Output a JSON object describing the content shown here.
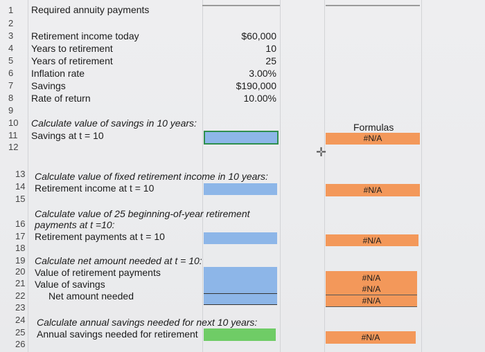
{
  "title": "Required annuity payments",
  "row_numbers": [
    "1",
    "2",
    "3",
    "4",
    "5",
    "6",
    "7",
    "8",
    "9",
    "10",
    "11",
    "12",
    "13",
    "14",
    "15",
    "16",
    "17",
    "18",
    "19",
    "20",
    "21",
    "22",
    "23",
    "24",
    "25",
    "26"
  ],
  "inputs": [
    {
      "label": "Retirement income today",
      "value": "$60,000"
    },
    {
      "label": "Years to retirement",
      "value": "10"
    },
    {
      "label": "Years of retirement",
      "value": "25"
    },
    {
      "label": "Inflation rate",
      "value": "3.00%"
    },
    {
      "label": "Savings",
      "value": "$190,000"
    },
    {
      "label": "Rate of return",
      "value": "10.00%"
    }
  ],
  "sections": {
    "s1_heading": "Calculate value of savings in 10 years:",
    "s1_label": "Savings at t = 10",
    "s2_heading": "Calculate value of fixed retirement income in 10 years:",
    "s2_label": "Retirement income at t = 10",
    "s3_heading_line1": "Calculate value of 25 beginning-of-year retirement",
    "s3_heading_line2": "payments at t =10:",
    "s3_label": "Retirement payments at t = 10",
    "s4_heading": "Calculate net amount needed at t = 10:",
    "s4_label1": "Value of retirement payments",
    "s4_label2": "Value of savings",
    "s4_label3": "Net amount needed",
    "s5_heading": "Calculate annual savings needed for next 10 years:",
    "s5_label": "Annual savings needed for retirement"
  },
  "formulas_header": "Formulas",
  "na": "#N/A",
  "colors": {
    "input_cell": "#8db6e8",
    "selected_green": "#6fcc66",
    "formula_orange": "#f3985a"
  }
}
